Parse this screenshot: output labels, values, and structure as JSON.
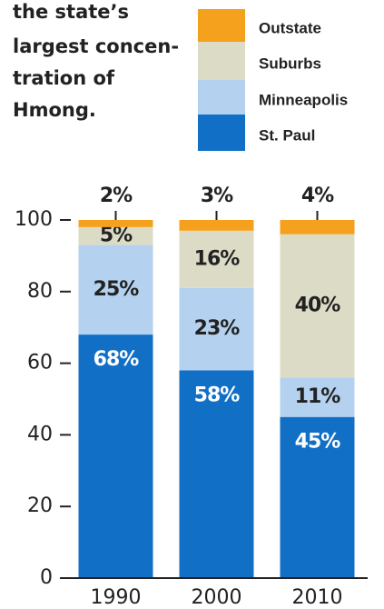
{
  "chart_data": {
    "type": "stacked_bar",
    "text_lines": [
      "the state’s",
      "largest concen-",
      "tration of",
      "Hmong."
    ],
    "categories": [
      "1990",
      "2000",
      "2010"
    ],
    "series": [
      {
        "name": "St. Paul",
        "color": "#1170c6",
        "values": [
          68,
          58,
          45
        ],
        "value_labels": [
          "68%",
          "58%",
          "45%"
        ]
      },
      {
        "name": "Minneapolis",
        "color": "#b4d1ef",
        "values": [
          25,
          23,
          11
        ],
        "value_labels": [
          "25%",
          "23%",
          "11%"
        ]
      },
      {
        "name": "Suburbs",
        "color": "#dcdcc6",
        "values": [
          5,
          16,
          40
        ],
        "value_labels": [
          "5%",
          "16%",
          "40%"
        ]
      },
      {
        "name": "Outstate",
        "color": "#f5a11e",
        "values": [
          2,
          3,
          4
        ],
        "value_labels": [
          "2%",
          "3%",
          "4%"
        ]
      }
    ],
    "ylim": [
      0,
      100
    ],
    "yticks": [
      0,
      20,
      40,
      60,
      80,
      100
    ]
  }
}
